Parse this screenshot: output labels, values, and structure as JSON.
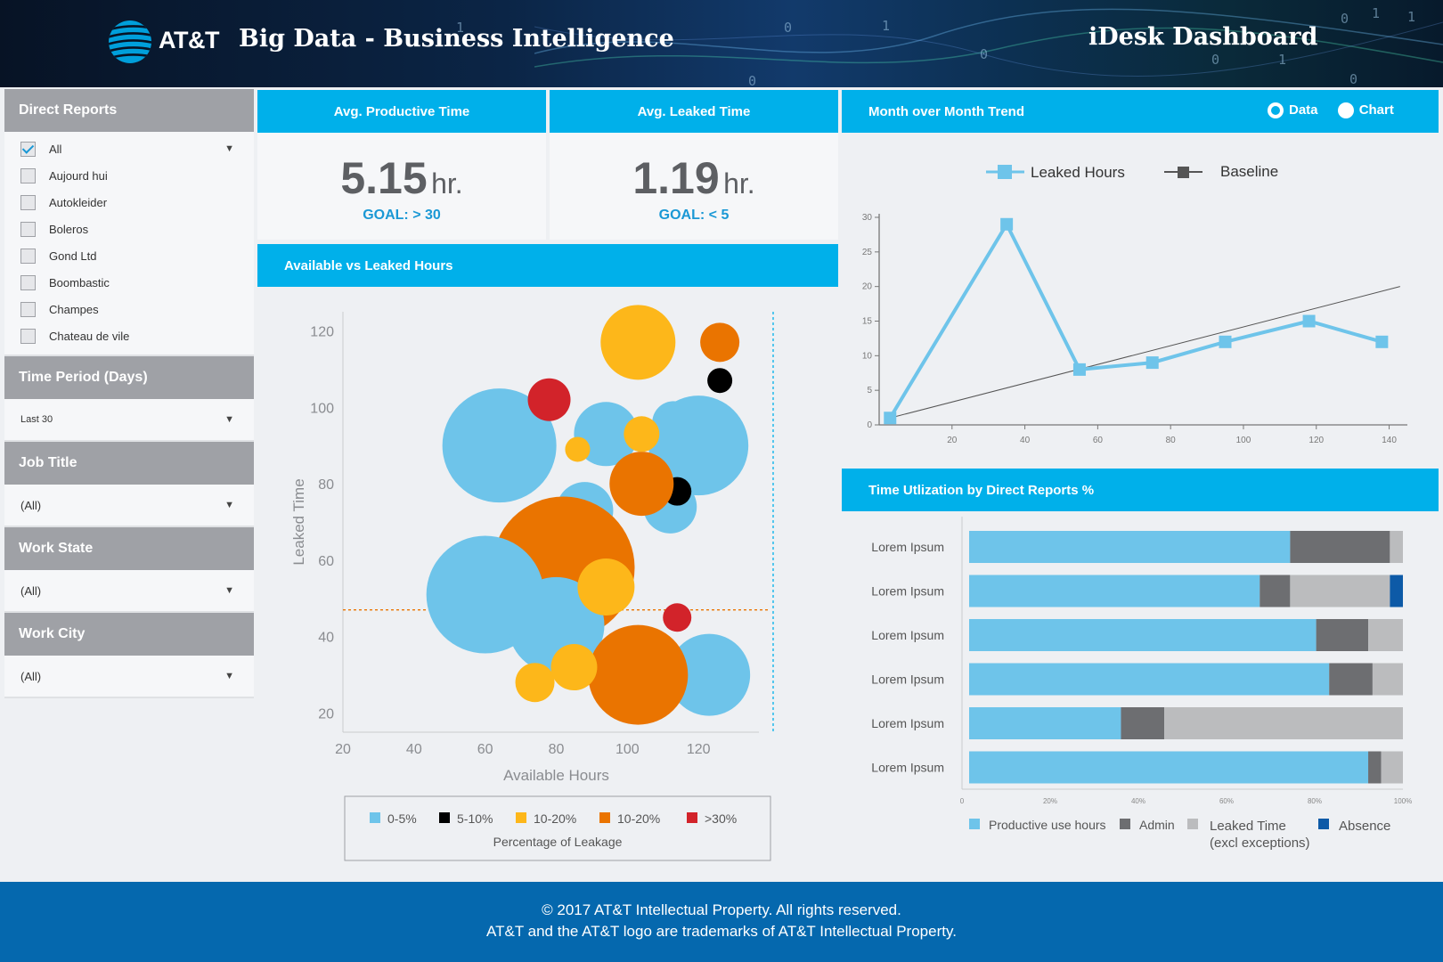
{
  "header": {
    "brand": "AT&T",
    "app_title": "Big Data - Business Intelligence",
    "dashboard_title": "iDesk Dashboard"
  },
  "sidebar": {
    "direct_reports": {
      "title": "Direct Reports",
      "items": [
        {
          "label": "All",
          "checked": true
        },
        {
          "label": "Aujourd hui",
          "checked": false
        },
        {
          "label": "Autokleider",
          "checked": false
        },
        {
          "label": "Boleros",
          "checked": false
        },
        {
          "label": "Gond Ltd",
          "checked": false
        },
        {
          "label": "Boombastic",
          "checked": false
        },
        {
          "label": "Champes",
          "checked": false
        },
        {
          "label": "Chateau de vile",
          "checked": false
        }
      ]
    },
    "time_period": {
      "title": "Time Period (Days)",
      "value": "Last 30"
    },
    "job_title": {
      "title": "Job Title",
      "value": "(All)"
    },
    "work_state": {
      "title": "Work State",
      "value": "(All)"
    },
    "work_city": {
      "title": "Work City",
      "value": "(All)"
    }
  },
  "kpis": {
    "productive": {
      "title": "Avg. Productive Time",
      "value": "5.15",
      "unit": "hr.",
      "goal": "GOAL: > 30"
    },
    "leaked": {
      "title": "Avg. Leaked Time",
      "value": "1.19",
      "unit": "hr.",
      "goal": "GOAL: < 5"
    }
  },
  "trend": {
    "title": "Month over Month Trend",
    "toggle": {
      "data_label": "Data",
      "chart_label": "Chart",
      "selected": "Data"
    }
  },
  "utilization": {
    "title": "Time Utlization by Direct Reports %"
  },
  "bubble": {
    "title": "Available vs Leaked Hours"
  },
  "colors": {
    "accent": "#00b0ea",
    "light_blue": "#6ec4ea",
    "black": "#000000",
    "yellow": "#fdb71a",
    "orange": "#ea7400",
    "red": "#d2232a",
    "dark_gray": "#6d6e71",
    "light_gray": "#bbbcbe",
    "navy": "#0d5aa7",
    "footer_blue": "#0568ae"
  },
  "chart_data": [
    {
      "type": "scatter",
      "name": "bubble",
      "xlabel": "Available Hours",
      "ylabel": "Leaked Time",
      "xlim": [
        20,
        140
      ],
      "ylim": [
        15,
        125
      ],
      "xticks": [
        20,
        40,
        60,
        80,
        100,
        120
      ],
      "yticks": [
        20,
        40,
        60,
        80,
        100,
        120
      ],
      "ref_x": 141,
      "ref_y": 47,
      "legend_title": "Percentage of Leakage",
      "legend_position": "bottom",
      "categories": [
        {
          "label": "0-5%",
          "color": "#6ec4ea"
        },
        {
          "label": "5-10%",
          "color": "#000000"
        },
        {
          "label": "10-20%",
          "color": "#fdb71a"
        },
        {
          "label": "10-20%",
          "color": "#ea7400"
        },
        {
          "label": ">30%",
          "color": "#d2232a"
        }
      ],
      "points": [
        {
          "x": 64,
          "y": 90,
          "size": 32,
          "cat": 0
        },
        {
          "x": 94,
          "y": 93,
          "size": 18,
          "cat": 0
        },
        {
          "x": 113,
          "y": 96,
          "size": 12,
          "cat": 0
        },
        {
          "x": 120,
          "y": 90,
          "size": 28,
          "cat": 0
        },
        {
          "x": 112,
          "y": 74,
          "size": 15,
          "cat": 0
        },
        {
          "x": 114,
          "y": 78,
          "size": 8,
          "cat": 1
        },
        {
          "x": 88,
          "y": 73,
          "size": 16,
          "cat": 0
        },
        {
          "x": 80,
          "y": 70,
          "size": 12,
          "cat": 0
        },
        {
          "x": 82,
          "y": 58,
          "size": 40,
          "cat": 3
        },
        {
          "x": 60,
          "y": 51,
          "size": 33,
          "cat": 0
        },
        {
          "x": 80,
          "y": 43,
          "size": 27,
          "cat": 0
        },
        {
          "x": 94,
          "y": 53,
          "size": 16,
          "cat": 2
        },
        {
          "x": 104,
          "y": 80,
          "size": 18,
          "cat": 3
        },
        {
          "x": 104,
          "y": 93,
          "size": 10,
          "cat": 2
        },
        {
          "x": 86,
          "y": 89,
          "size": 7,
          "cat": 2
        },
        {
          "x": 78,
          "y": 102,
          "size": 12,
          "cat": 4
        },
        {
          "x": 103,
          "y": 117,
          "size": 21,
          "cat": 2
        },
        {
          "x": 126,
          "y": 117,
          "size": 11,
          "cat": 3
        },
        {
          "x": 126,
          "y": 107,
          "size": 7,
          "cat": 1
        },
        {
          "x": 114,
          "y": 45,
          "size": 8,
          "cat": 4
        },
        {
          "x": 123,
          "y": 30,
          "size": 23,
          "cat": 0
        },
        {
          "x": 103,
          "y": 30,
          "size": 28,
          "cat": 3
        },
        {
          "x": 74,
          "y": 28,
          "size": 11,
          "cat": 2
        },
        {
          "x": 85,
          "y": 32,
          "size": 13,
          "cat": 2
        }
      ]
    },
    {
      "type": "line",
      "name": "trend",
      "xlim": [
        0,
        145
      ],
      "ylim": [
        0,
        30
      ],
      "xticks": [
        20,
        40,
        60,
        80,
        100,
        120,
        140
      ],
      "yticks": [
        0,
        5,
        10,
        15,
        20,
        25,
        30
      ],
      "legend_position": "top",
      "series": [
        {
          "name": "Leaked Hours",
          "color": "#6ec4ea",
          "x": [
            3,
            35,
            55,
            75,
            95,
            118,
            138
          ],
          "y": [
            1,
            29,
            8,
            9,
            12,
            15,
            12
          ]
        },
        {
          "name": "Baseline",
          "color": "#555555",
          "x": [
            3,
            143
          ],
          "y": [
            1,
            20
          ]
        }
      ]
    },
    {
      "type": "bar",
      "name": "utilization",
      "stacked": true,
      "orientation": "horizontal",
      "categories": [
        "Lorem Ipsum",
        "Lorem Ipsum",
        "Lorem Ipsum",
        "Lorem Ipsum",
        "Lorem Ipsum",
        "Lorem Ipsum"
      ],
      "xticks": [
        "0",
        "20%",
        "40%",
        "60%",
        "80%",
        "100%"
      ],
      "legend_position": "bottom",
      "series": [
        {
          "name": "Productive use hours",
          "color": "#6ec4ea",
          "values": [
            74,
            67,
            80,
            83,
            35,
            92
          ]
        },
        {
          "name": "Admin",
          "color": "#6d6e71",
          "values": [
            23,
            7,
            12,
            10,
            10,
            3
          ]
        },
        {
          "name": "Leaked Time (excl exceptions)",
          "color": "#bbbcbe",
          "values": [
            3,
            23,
            8,
            7,
            55,
            5
          ]
        },
        {
          "name": "Absence",
          "color": "#0d5aa7",
          "values": [
            0,
            3,
            0,
            0,
            0,
            0
          ]
        }
      ]
    }
  ],
  "footer": {
    "line1": "© 2017 AT&T Intellectual Property. All rights reserved.",
    "line2": "AT&T and the AT&T logo are trademarks of AT&T Intellectual Property."
  }
}
